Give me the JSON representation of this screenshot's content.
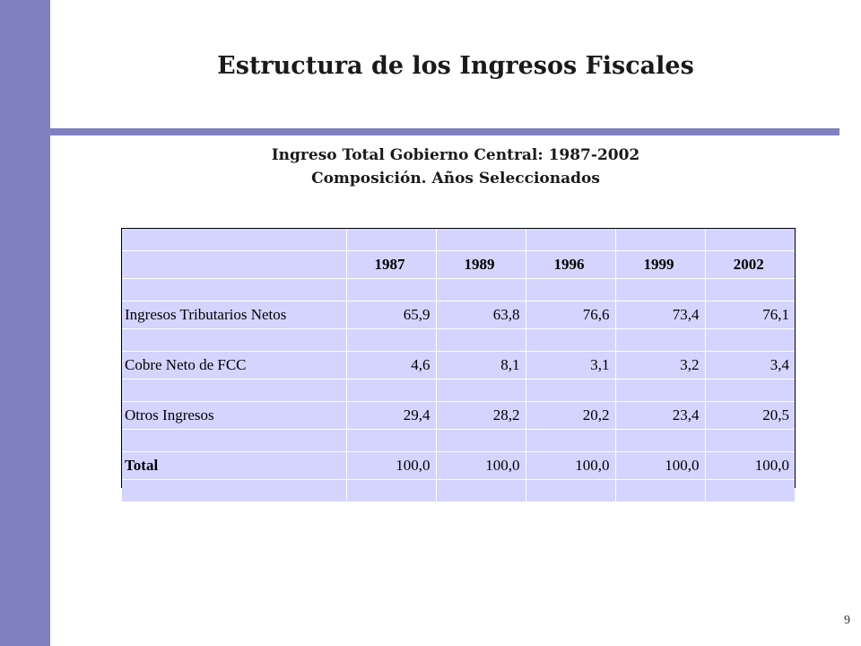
{
  "slide": {
    "title": "Estructura de los Ingresos Fiscales",
    "subtitle_line1": "Ingreso Total Gobierno Central: 1987-2002",
    "subtitle_line2": "Composición. Años Seleccionados",
    "page_number": "9",
    "accent_color": "#8080c0",
    "table_bg_color": "#d4d4ff"
  },
  "table": {
    "years": [
      "1987",
      "1989",
      "1996",
      "1999",
      "2002"
    ],
    "rows": [
      {
        "label": "Ingresos Tributarios Netos",
        "values": [
          "65,9",
          "63,8",
          "76,6",
          "73,4",
          "76,1"
        ]
      },
      {
        "label": "Cobre Neto de FCC",
        "values": [
          "4,6",
          "8,1",
          "3,1",
          "3,2",
          "3,4"
        ]
      },
      {
        "label": "Otros Ingresos",
        "values": [
          "29,4",
          "28,2",
          "20,2",
          "23,4",
          "20,5"
        ]
      },
      {
        "label": "Total",
        "values": [
          "100,0",
          "100,0",
          "100,0",
          "100,0",
          "100,0"
        ]
      }
    ]
  }
}
